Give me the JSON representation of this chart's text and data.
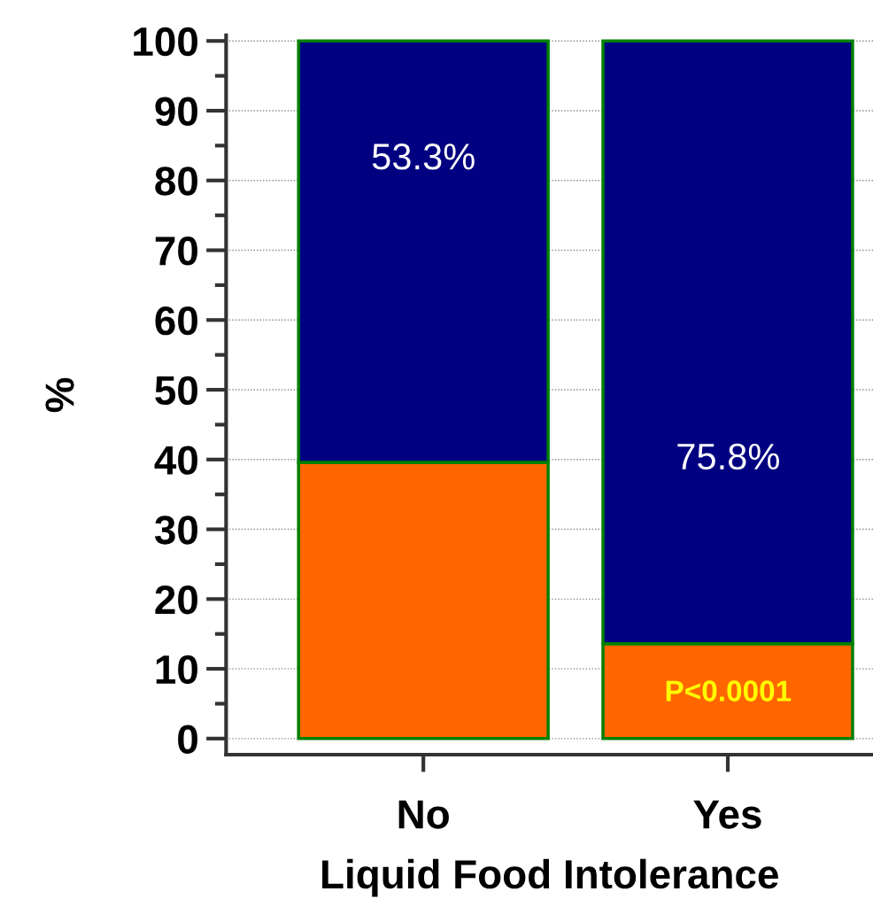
{
  "chart_data": {
    "type": "bar",
    "stacked": true,
    "categories": [
      "No",
      "Yes"
    ],
    "xlabel": "Liquid Food Intolerance",
    "ylabel": "%",
    "series": [
      {
        "color": "#ff6600",
        "values": [
          39.6,
          13.6
        ]
      },
      {
        "color": "#000080",
        "values": [
          60.4,
          86.4
        ]
      }
    ],
    "ylim": [
      -2.3,
      100.8
    ],
    "yticks": [
      0,
      10,
      20,
      30,
      40,
      50,
      60,
      70,
      80,
      90,
      100
    ],
    "grid": "y",
    "annotations": [
      "53.3%",
      "75.8%",
      "P<0.0001"
    ]
  }
}
